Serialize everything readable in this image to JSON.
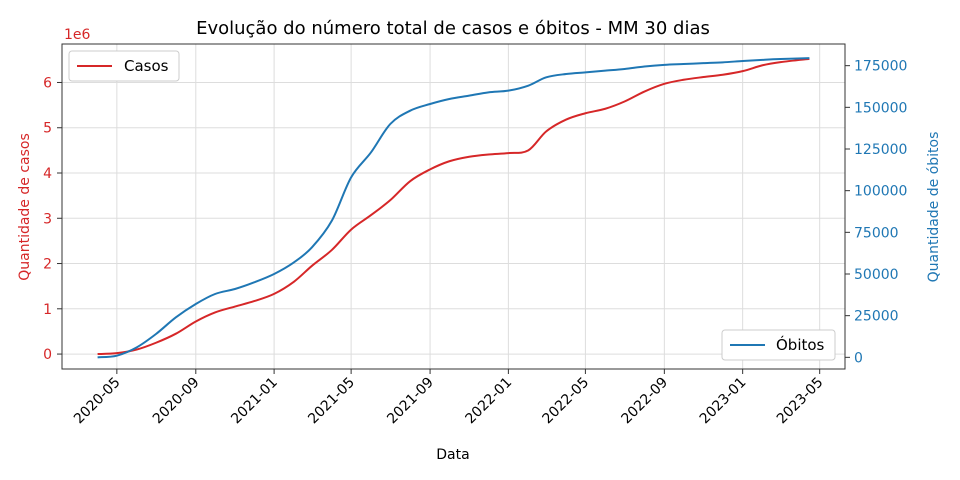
{
  "chart_data": {
    "type": "line",
    "title": "Evolução do número total de casos e óbitos - MM 30 dias",
    "xlabel": "Data",
    "x_ticks": [
      "2020-05",
      "2020-09",
      "2021-01",
      "2021-05",
      "2021-09",
      "2022-01",
      "2022-05",
      "2022-09",
      "2023-01",
      "2023-05"
    ],
    "grid": true,
    "colors": {
      "casos": "#d62728",
      "obitos": "#1f77b4"
    },
    "left_axis": {
      "label": "Quantidade de casos",
      "offset_text": "1e6",
      "ylim": [
        -0.33,
        6.85
      ],
      "ticks": [
        0,
        1,
        2,
        3,
        4,
        5,
        6
      ],
      "tick_labels": [
        "0",
        "1",
        "2",
        "3",
        "4",
        "5",
        "6"
      ]
    },
    "right_axis": {
      "label": "Quantidade de óbitos",
      "ylim": [
        -7000,
        188000
      ],
      "ticks": [
        0,
        25000,
        50000,
        75000,
        100000,
        125000,
        150000,
        175000
      ],
      "tick_labels": [
        "0",
        "25000",
        "50000",
        "75000",
        "100000",
        "125000",
        "150000",
        "175000"
      ]
    },
    "legend_left": {
      "label": "Casos",
      "placement": "upper-left"
    },
    "legend_right": {
      "label": "Óbitos",
      "placement": "lower-right"
    },
    "series": [
      {
        "name": "Casos",
        "axis": "left",
        "dates": [
          "2020-04-01",
          "2020-05-01",
          "2020-06-01",
          "2020-07-01",
          "2020-08-01",
          "2020-09-01",
          "2020-10-01",
          "2020-11-01",
          "2020-12-01",
          "2021-01-01",
          "2021-02-01",
          "2021-03-01",
          "2021-04-01",
          "2021-05-01",
          "2021-06-01",
          "2021-07-01",
          "2021-08-01",
          "2021-09-01",
          "2021-10-01",
          "2021-11-01",
          "2021-12-01",
          "2022-01-01",
          "2022-02-01",
          "2022-03-01",
          "2022-04-01",
          "2022-05-01",
          "2022-06-01",
          "2022-07-01",
          "2022-08-01",
          "2022-09-01",
          "2022-10-01",
          "2022-11-01",
          "2022-12-01",
          "2023-01-01",
          "2023-02-01",
          "2023-03-01",
          "2023-04-15"
        ],
        "values": [
          0.0,
          0.02,
          0.1,
          0.25,
          0.45,
          0.72,
          0.92,
          1.05,
          1.17,
          1.33,
          1.6,
          1.95,
          2.3,
          2.75,
          3.07,
          3.4,
          3.82,
          4.08,
          4.26,
          4.36,
          4.41,
          4.44,
          4.5,
          4.92,
          5.18,
          5.32,
          5.42,
          5.58,
          5.8,
          5.97,
          6.06,
          6.12,
          6.17,
          6.25,
          6.38,
          6.45,
          6.52
        ]
      },
      {
        "name": "Óbitos",
        "axis": "right",
        "dates": [
          "2020-04-01",
          "2020-05-01",
          "2020-06-01",
          "2020-07-01",
          "2020-08-01",
          "2020-09-01",
          "2020-10-01",
          "2020-11-01",
          "2020-12-01",
          "2021-01-01",
          "2021-02-01",
          "2021-03-01",
          "2021-04-01",
          "2021-05-01",
          "2021-06-01",
          "2021-07-01",
          "2021-08-01",
          "2021-09-01",
          "2021-10-01",
          "2021-11-01",
          "2021-12-01",
          "2022-01-01",
          "2022-02-01",
          "2022-03-01",
          "2022-04-01",
          "2022-05-01",
          "2022-06-01",
          "2022-07-01",
          "2022-08-01",
          "2022-09-01",
          "2022-10-01",
          "2022-11-01",
          "2022-12-01",
          "2023-01-01",
          "2023-02-01",
          "2023-03-01",
          "2023-04-15"
        ],
        "values": [
          0,
          1000,
          6000,
          14000,
          24000,
          32000,
          38000,
          41000,
          45000,
          50000,
          57000,
          66000,
          82000,
          108000,
          123000,
          140000,
          148000,
          152000,
          155000,
          157000,
          159000,
          160000,
          163000,
          168000,
          170000,
          171000,
          172000,
          173000,
          174500,
          175500,
          176000,
          176500,
          177000,
          177800,
          178500,
          179000,
          179500
        ]
      }
    ]
  }
}
